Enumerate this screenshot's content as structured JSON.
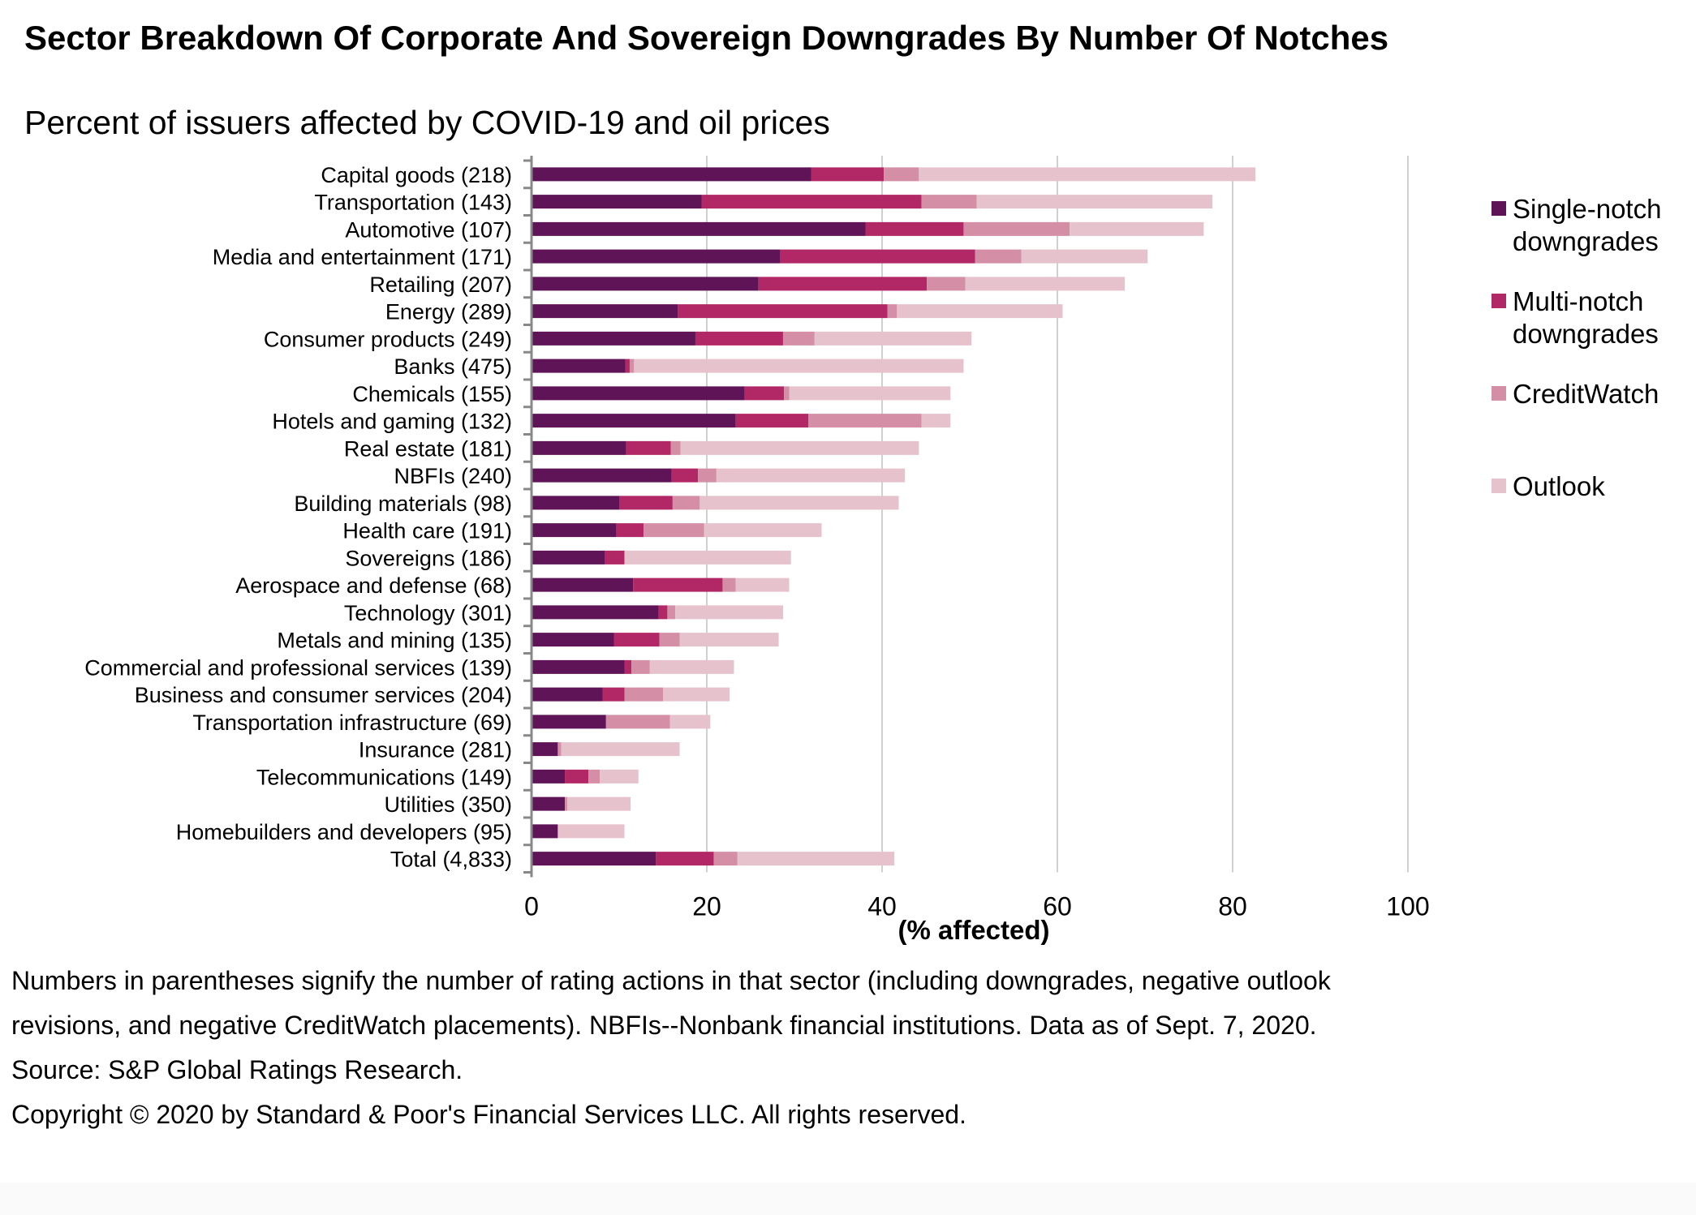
{
  "chart_data": {
    "type": "bar",
    "orientation": "horizontal",
    "stacked": true,
    "title": "Sector Breakdown Of Corporate And Sovereign Downgrades By Number Of Notches",
    "subtitle": "Percent of issuers affected by COVID-19 and oil prices",
    "xlabel": "(% affected)",
    "ylabel": "",
    "xlim": [
      0,
      100
    ],
    "xticks": [
      "0",
      "20",
      "40",
      "60",
      "80",
      "100"
    ],
    "grid": true,
    "legend_position": "right",
    "categories": [
      "Capital goods (218)",
      "Transportation (143)",
      "Automotive (107)",
      "Media and entertainment (171)",
      "Retailing (207)",
      "Energy (289)",
      "Consumer products (249)",
      "Banks (475)",
      "Chemicals (155)",
      "Hotels and gaming (132)",
      "Real estate (181)",
      "NBFIs (240)",
      "Building materials (98)",
      "Health care (191)",
      "Sovereigns (186)",
      "Aerospace and defense (68)",
      "Technology (301)",
      "Metals and mining (135)",
      "Commercial and professional services (139)",
      "Business and consumer services (204)",
      "Transportation infrastructure (69)",
      "Insurance (281)",
      "Telecommunications (149)",
      "Utilities (350)",
      "Homebuilders and developers (95)",
      "Total (4,833)"
    ],
    "series": [
      {
        "name": "Single-notch downgrades",
        "color": "#5f1458",
        "values": [
          31.9,
          19.4,
          38.1,
          28.4,
          25.9,
          16.7,
          18.7,
          10.7,
          24.3,
          23.3,
          10.8,
          16.0,
          10.0,
          9.7,
          8.4,
          11.6,
          14.5,
          9.4,
          10.6,
          8.1,
          8.5,
          3.0,
          3.8,
          3.8,
          3.0,
          14.2
        ]
      },
      {
        "name": "Multi-notch downgrades",
        "color": "#b22866",
        "values": [
          8.3,
          25.1,
          11.2,
          22.2,
          19.2,
          23.9,
          10.0,
          0.5,
          4.5,
          8.3,
          5.1,
          3.0,
          6.1,
          3.1,
          2.2,
          10.2,
          1.0,
          5.2,
          0.8,
          2.5,
          0.0,
          0.0,
          2.7,
          0.0,
          0.0,
          6.6
        ]
      },
      {
        "name": "CreditWatch",
        "color": "#d48fa6",
        "values": [
          4.0,
          6.3,
          12.1,
          5.3,
          4.4,
          1.1,
          3.6,
          0.5,
          0.6,
          12.9,
          1.1,
          2.1,
          3.1,
          6.9,
          0.0,
          1.5,
          0.9,
          2.3,
          2.1,
          4.4,
          7.3,
          0.4,
          1.3,
          0.3,
          0.0,
          2.7
        ]
      },
      {
        "name": "Outlook",
        "color": "#e6c3cc",
        "values": [
          38.4,
          26.9,
          15.3,
          14.4,
          18.2,
          18.9,
          17.9,
          37.6,
          18.4,
          3.3,
          27.2,
          21.5,
          22.7,
          13.4,
          19.0,
          6.1,
          12.3,
          11.3,
          9.6,
          7.6,
          4.6,
          13.5,
          4.4,
          7.2,
          7.6,
          17.9
        ]
      }
    ]
  },
  "legend": {
    "items": [
      {
        "label": "Single-notch downgrades",
        "color": "#5f1458"
      },
      {
        "label": "Multi-notch downgrades",
        "color": "#b22866"
      },
      {
        "label": "CreditWatch",
        "color": "#d48fa6"
      },
      {
        "label": "Outlook",
        "color": "#e6c3cc"
      }
    ]
  },
  "footnote": {
    "text": "Numbers in parentheses signify the number of rating actions in that sector (including downgrades, negative outlook revisions, and negative CreditWatch placements). NBFIs--Nonbank financial institutions. Data as of Sept. 7, 2020. Source: S&P Global Ratings Research.",
    "copyright": "Copyright © 2020 by Standard & Poor's Financial Services LLC. All rights reserved."
  }
}
